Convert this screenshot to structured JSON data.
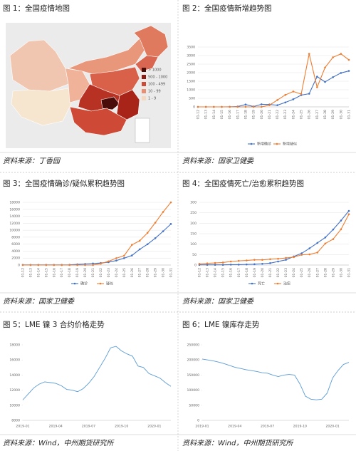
{
  "chart_data": [
    {
      "type": "map",
      "title": "图 1：全国疫情地图",
      "source": "资料来源：丁香园",
      "legend": [
        {
          "label": "> 1000",
          "color": "#4a0d0a"
        },
        {
          "label": "500 - 1000",
          "color": "#8c1a12"
        },
        {
          "label": "100 - 499",
          "color": "#cf4a36"
        },
        {
          "label": "10 - 99",
          "color": "#eb8f72"
        },
        {
          "label": "1 - 9",
          "color": "#f6d8bf"
        }
      ]
    },
    {
      "type": "line",
      "title": "图 2：全国疫情新增趋势图",
      "source": "资料来源：国家卫健委",
      "categories": [
        "01-12",
        "01-13",
        "01-14",
        "01-15",
        "01-16",
        "01-17",
        "01-18",
        "01-19",
        "01-20",
        "01-21",
        "01-22",
        "01-23",
        "01-24",
        "01-25",
        "01-26",
        "01-27",
        "01-28",
        "01-29",
        "01-30",
        "01-31"
      ],
      "series": [
        {
          "name": "新增确诊",
          "color": "#4472c4",
          "values": [
            0,
            0,
            0,
            0,
            4,
            17,
            136,
            19,
            151,
            140,
            97,
            259,
            444,
            688,
            769,
            1771,
            1459,
            1737,
            1982,
            2102
          ]
        },
        {
          "name": "新增疑似",
          "color": "#ed7d31",
          "values": [
            0,
            0,
            0,
            0,
            0,
            0,
            0,
            0,
            0,
            100,
            400,
            700,
            900,
            750,
            3100,
            1150,
            2300,
            2900,
            3100,
            2750
          ]
        }
      ],
      "ylim": [
        0,
        3500
      ],
      "yticks": [
        0,
        500,
        1000,
        1500,
        2000,
        2500,
        3000,
        3500
      ],
      "grid": true
    },
    {
      "type": "line",
      "title": "图 3：全国疫情确诊/疑似累积趋势图",
      "source": "资料来源：国家卫健委",
      "categories": [
        "01-12",
        "01-13",
        "01-14",
        "01-15",
        "01-16",
        "01-17",
        "01-18",
        "01-19",
        "01-20",
        "01-21",
        "01-22",
        "01-23",
        "01-24",
        "01-25",
        "01-26",
        "01-27",
        "01-28",
        "01-29",
        "01-30",
        "01-31"
      ],
      "series": [
        {
          "name": "确诊",
          "color": "#4472c4",
          "values": [
            41,
            41,
            41,
            41,
            41,
            45,
            62,
            198,
            291,
            440,
            571,
            830,
            1287,
            1975,
            2744,
            4515,
            5974,
            7711,
            9692,
            11791
          ]
        },
        {
          "name": "疑似",
          "color": "#ed7d31",
          "values": [
            0,
            0,
            0,
            0,
            0,
            0,
            0,
            0,
            0,
            0,
            393,
            1072,
            1965,
            2684,
            5794,
            6973,
            9239,
            12167,
            15238,
            17988
          ]
        }
      ],
      "ylim": [
        0,
        18000
      ],
      "yticks": [
        0,
        2000,
        4000,
        6000,
        8000,
        10000,
        12000,
        14000,
        16000,
        18000
      ],
      "grid": true
    },
    {
      "type": "line",
      "title": "图 4：全国疫情死亡/治愈累积趋势图",
      "source": "资料来源：国家卫健委",
      "categories": [
        "01-12",
        "01-13",
        "01-14",
        "01-15",
        "01-16",
        "01-17",
        "01-18",
        "01-19",
        "01-20",
        "01-21",
        "01-22",
        "01-23",
        "01-24",
        "01-25",
        "01-26",
        "01-27",
        "01-28",
        "01-29",
        "01-30",
        "01-31"
      ],
      "series": [
        {
          "name": "死亡",
          "color": "#4472c4",
          "values": [
            1,
            1,
            1,
            1,
            2,
            2,
            3,
            4,
            6,
            9,
            17,
            25,
            41,
            56,
            80,
            106,
            132,
            170,
            213,
            259
          ]
        },
        {
          "name": "治愈",
          "color": "#ed7d31",
          "values": [
            6,
            8,
            10,
            12,
            17,
            20,
            22,
            25,
            25,
            28,
            30,
            34,
            38,
            49,
            51,
            60,
            103,
            124,
            171,
            243
          ]
        }
      ],
      "ylim": [
        0,
        300
      ],
      "yticks": [
        0,
        50,
        100,
        150,
        200,
        250,
        300
      ],
      "grid": true
    },
    {
      "type": "line",
      "title": "图 5：LME 镍 3 合约价格走势",
      "source": "资料来源：Wind，中州期货研究所",
      "categories": [
        "2019-01",
        null,
        null,
        null,
        null,
        null,
        "2019-04",
        null,
        null,
        null,
        null,
        null,
        "2019-07",
        null,
        null,
        null,
        null,
        null,
        "2019-10",
        null,
        null,
        null,
        null,
        null,
        "2020-01",
        null,
        null,
        null
      ],
      "series": [
        {
          "color": "#5b9bd5",
          "values": [
            10700,
            11500,
            12300,
            12800,
            13100,
            13000,
            12900,
            12600,
            12100,
            12000,
            11800,
            12200,
            12900,
            13800,
            15000,
            16200,
            17600,
            17800,
            17200,
            16800,
            16500,
            15200,
            15000,
            14200,
            13900,
            13600,
            13000,
            12500
          ]
        }
      ],
      "ylim": [
        8000,
        18000
      ],
      "yticks": [
        8000,
        10000,
        12000,
        14000,
        16000,
        18000
      ],
      "grid": false
    },
    {
      "type": "line",
      "title": "图 6：LME 镍库存走势",
      "source": "资料来源：Wind，中州期货研究所",
      "categories": [
        "2019-01",
        null,
        null,
        null,
        null,
        null,
        "2019-04",
        null,
        null,
        null,
        null,
        null,
        "2019-07",
        null,
        null,
        null,
        null,
        null,
        "2019-10",
        null,
        null,
        null,
        null,
        null,
        "2020-01",
        null,
        null,
        null
      ],
      "series": [
        {
          "color": "#5b9bd5",
          "values": [
            203000,
            200000,
            197000,
            193000,
            188000,
            182000,
            176000,
            172000,
            168000,
            165000,
            162000,
            158000,
            156000,
            150000,
            145000,
            150000,
            152000,
            150000,
            120000,
            80000,
            70000,
            68000,
            70000,
            90000,
            140000,
            165000,
            185000,
            192000
          ]
        }
      ],
      "ylim": [
        0,
        250000
      ],
      "yticks": [
        0,
        50000,
        100000,
        150000,
        200000,
        250000
      ],
      "grid": false
    }
  ]
}
